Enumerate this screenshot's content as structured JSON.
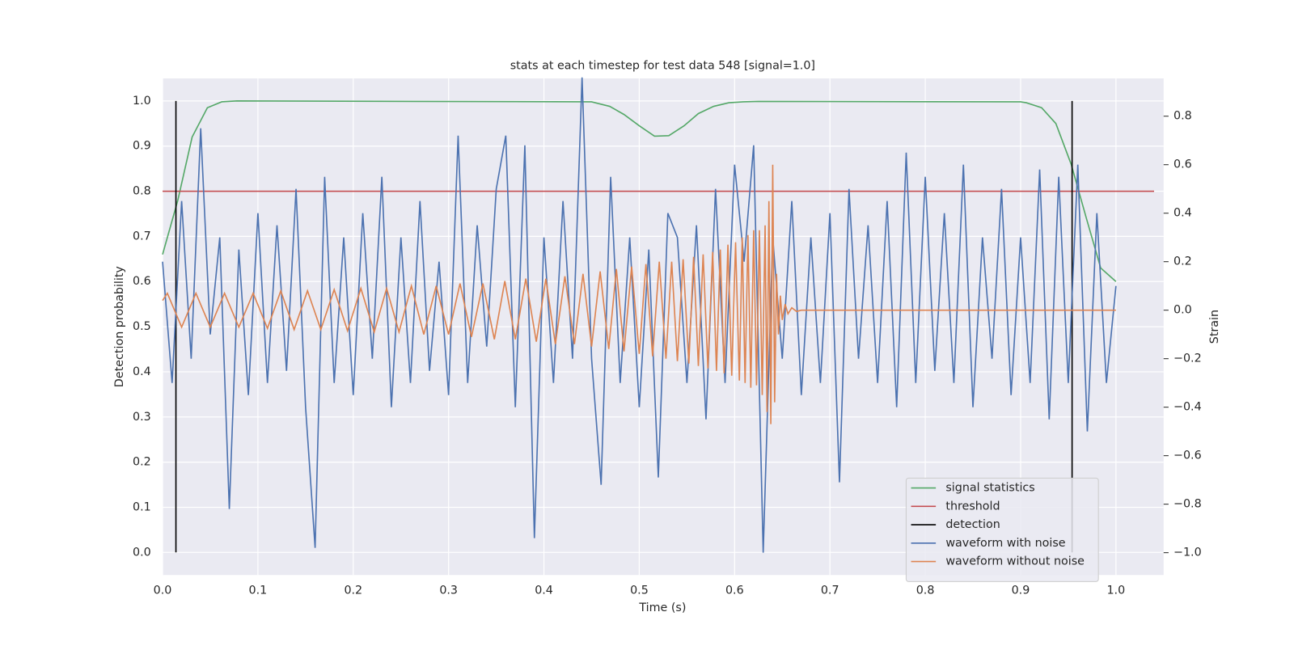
{
  "chart_data": {
    "type": "line",
    "title": "stats at each timestep for test data 548 [signal=1.0]",
    "xlabel": "Time (s)",
    "ylabel": "Detection probability",
    "y2label": "Strain",
    "xlim": [
      0,
      1.05
    ],
    "ylim": [
      -0.05,
      1.05
    ],
    "y2lim": [
      -1.092,
      0.956
    ],
    "xticks": [
      {
        "value": 0,
        "label": "0.0"
      },
      {
        "value": 0.1,
        "label": "0.1"
      },
      {
        "value": 0.2,
        "label": "0.2"
      },
      {
        "value": 0.3,
        "label": "0.3"
      },
      {
        "value": 0.4,
        "label": "0.4"
      },
      {
        "value": 0.5,
        "label": "0.5"
      },
      {
        "value": 0.6,
        "label": "0.6"
      },
      {
        "value": 0.7,
        "label": "0.7"
      },
      {
        "value": 0.8,
        "label": "0.8"
      },
      {
        "value": 0.9,
        "label": "0.9"
      },
      {
        "value": 1,
        "label": "1.0"
      }
    ],
    "yticks": [
      {
        "value": 0,
        "label": "0.0"
      },
      {
        "value": 0.1,
        "label": "0.1"
      },
      {
        "value": 0.2,
        "label": "0.2"
      },
      {
        "value": 0.3,
        "label": "0.3"
      },
      {
        "value": 0.4,
        "label": "0.4"
      },
      {
        "value": 0.5,
        "label": "0.5"
      },
      {
        "value": 0.6,
        "label": "0.6"
      },
      {
        "value": 0.7,
        "label": "0.7"
      },
      {
        "value": 0.8,
        "label": "0.8"
      },
      {
        "value": 0.9,
        "label": "0.9"
      },
      {
        "value": 1,
        "label": "1.0"
      }
    ],
    "y2ticks": [
      {
        "value": 0.8,
        "label": "0.8"
      },
      {
        "value": 0.6,
        "label": "0.6"
      },
      {
        "value": 0.4,
        "label": "0.4"
      },
      {
        "value": 0.2,
        "label": "0.2"
      },
      {
        "value": 0,
        "label": "0.0"
      },
      {
        "value": -0.2,
        "label": "−0.2"
      },
      {
        "value": -0.4,
        "label": "−0.4"
      },
      {
        "value": -0.6,
        "label": "−0.6"
      },
      {
        "value": -0.8,
        "label": "−0.8"
      },
      {
        "value": -1,
        "label": "−1.0"
      }
    ],
    "grid": true,
    "legend": "lower right",
    "series": [
      {
        "name": "signal statistics",
        "color": "#55a868",
        "x": [
          0,
          0.016,
          0.031,
          0.047,
          0.062,
          0.078,
          0.45,
          0.469,
          0.484,
          0.5,
          0.516,
          0.531,
          0.547,
          0.562,
          0.578,
          0.594,
          0.609,
          0.625,
          0.9,
          0.906,
          0.922,
          0.937,
          0.953,
          0.969,
          0.984,
          1.0
        ],
        "values": [
          0.66,
          0.78,
          0.92,
          0.985,
          0.998,
          1.0,
          0.998,
          0.988,
          0.97,
          0.945,
          0.922,
          0.923,
          0.945,
          0.972,
          0.988,
          0.996,
          0.998,
          0.999,
          0.998,
          0.996,
          0.985,
          0.95,
          0.86,
          0.74,
          0.63,
          0.6
        ]
      },
      {
        "name": "threshold",
        "color": "#c44e52",
        "x": [
          0,
          1.04
        ],
        "values": [
          0.8,
          0.8
        ]
      },
      {
        "name": "detection",
        "color": "#000000",
        "kind": "vlines",
        "x": [
          0.014,
          0.954
        ],
        "ymin": [
          0,
          0
        ],
        "ymax": [
          1,
          1
        ]
      },
      {
        "name": "waveform with noise",
        "color": "#4c72b0",
        "axis": "y2",
        "x": [
          0,
          0.01,
          0.02,
          0.03,
          0.04,
          0.05,
          0.06,
          0.07,
          0.08,
          0.09,
          0.1,
          0.11,
          0.12,
          0.13,
          0.14,
          0.15,
          0.16,
          0.17,
          0.18,
          0.19,
          0.2,
          0.21,
          0.22,
          0.23,
          0.24,
          0.25,
          0.26,
          0.27,
          0.28,
          0.29,
          0.3,
          0.31,
          0.32,
          0.33,
          0.34,
          0.35,
          0.36,
          0.37,
          0.38,
          0.39,
          0.4,
          0.41,
          0.42,
          0.43,
          0.44,
          0.45,
          0.46,
          0.47,
          0.48,
          0.49,
          0.5,
          0.51,
          0.52,
          0.53,
          0.54,
          0.55,
          0.56,
          0.57,
          0.58,
          0.59,
          0.6,
          0.61,
          0.62,
          0.63,
          0.64,
          0.65,
          0.66,
          0.67,
          0.68,
          0.69,
          0.7,
          0.71,
          0.72,
          0.73,
          0.74,
          0.75,
          0.76,
          0.77,
          0.78,
          0.79,
          0.8,
          0.81,
          0.82,
          0.83,
          0.84,
          0.85,
          0.86,
          0.87,
          0.88,
          0.89,
          0.9,
          0.91,
          0.92,
          0.93,
          0.94,
          0.95,
          0.96,
          0.97,
          0.98,
          0.99,
          1.0
        ],
        "values": [
          0.2,
          -0.3,
          0.45,
          -0.2,
          0.75,
          -0.1,
          0.3,
          -0.82,
          0.25,
          -0.35,
          0.4,
          -0.3,
          0.35,
          -0.25,
          0.5,
          -0.4,
          -0.98,
          0.55,
          -0.3,
          0.3,
          -0.35,
          0.4,
          -0.2,
          0.55,
          -0.4,
          0.3,
          -0.3,
          0.45,
          -0.25,
          0.2,
          -0.35,
          0.72,
          -0.3,
          0.35,
          -0.15,
          0.5,
          0.72,
          -0.4,
          0.68,
          -0.94,
          0.3,
          -0.3,
          0.45,
          -0.2,
          0.96,
          -0.2,
          -0.72,
          0.55,
          -0.3,
          0.3,
          -0.4,
          0.25,
          -0.69,
          0.4,
          0.3,
          -0.3,
          0.35,
          -0.45,
          0.5,
          -0.3,
          0.6,
          0.2,
          0.68,
          -1.0,
          0.3,
          -0.2,
          0.45,
          -0.35,
          0.3,
          -0.3,
          0.4,
          -0.71,
          0.5,
          -0.2,
          0.35,
          -0.3,
          0.45,
          -0.4,
          0.65,
          -0.3,
          0.55,
          -0.25,
          0.4,
          -0.3,
          0.6,
          -0.4,
          0.3,
          -0.2,
          0.5,
          -0.35,
          0.3,
          -0.3,
          0.58,
          -0.45,
          0.55,
          -0.3,
          0.6,
          -0.5,
          0.4,
          -0.3,
          0.1
        ]
      },
      {
        "name": "waveform without noise",
        "color": "#dd8452",
        "axis": "y2",
        "x": [
          0,
          0.005,
          0.02,
          0.035,
          0.05,
          0.065,
          0.08,
          0.095,
          0.11,
          0.124,
          0.138,
          0.152,
          0.166,
          0.18,
          0.194,
          0.208,
          0.222,
          0.235,
          0.248,
          0.261,
          0.274,
          0.287,
          0.3,
          0.312,
          0.324,
          0.336,
          0.348,
          0.359,
          0.37,
          0.381,
          0.392,
          0.402,
          0.412,
          0.422,
          0.432,
          0.441,
          0.45,
          0.459,
          0.468,
          0.476,
          0.484,
          0.492,
          0.5,
          0.507,
          0.514,
          0.521,
          0.528,
          0.534,
          0.54,
          0.546,
          0.552,
          0.557,
          0.562,
          0.567,
          0.572,
          0.577,
          0.581,
          0.585,
          0.589,
          0.593,
          0.597,
          0.601,
          0.605,
          0.608,
          0.611,
          0.614,
          0.617,
          0.62,
          0.623,
          0.626,
          0.629,
          0.632,
          0.634,
          0.636,
          0.638,
          0.64,
          0.642,
          0.644,
          0.646,
          0.648,
          0.65,
          0.653,
          0.656,
          0.66,
          0.665,
          0.67,
          1.0
        ],
        "values": [
          0.04,
          0.07,
          -0.07,
          0.07,
          -0.07,
          0.07,
          -0.07,
          0.07,
          -0.075,
          0.08,
          -0.08,
          0.08,
          -0.08,
          0.085,
          -0.085,
          0.09,
          -0.09,
          0.09,
          -0.09,
          0.1,
          -0.1,
          0.1,
          -0.1,
          0.11,
          -0.11,
          0.11,
          -0.12,
          0.12,
          -0.12,
          0.13,
          -0.13,
          0.13,
          -0.14,
          0.14,
          -0.14,
          0.15,
          -0.15,
          0.16,
          -0.16,
          0.17,
          -0.17,
          0.18,
          -0.18,
          0.19,
          -0.19,
          0.2,
          -0.2,
          0.2,
          -0.21,
          0.21,
          -0.22,
          0.22,
          -0.23,
          0.23,
          -0.24,
          0.24,
          -0.25,
          0.25,
          -0.26,
          0.27,
          -0.27,
          0.28,
          -0.29,
          0.3,
          -0.3,
          0.31,
          -0.32,
          0.33,
          -0.31,
          0.33,
          -0.35,
          0.35,
          -0.42,
          0.45,
          -0.47,
          0.6,
          -0.38,
          0.15,
          -0.1,
          0.06,
          -0.04,
          0.025,
          -0.015,
          0.01,
          -0.005,
          0,
          0
        ]
      }
    ]
  }
}
